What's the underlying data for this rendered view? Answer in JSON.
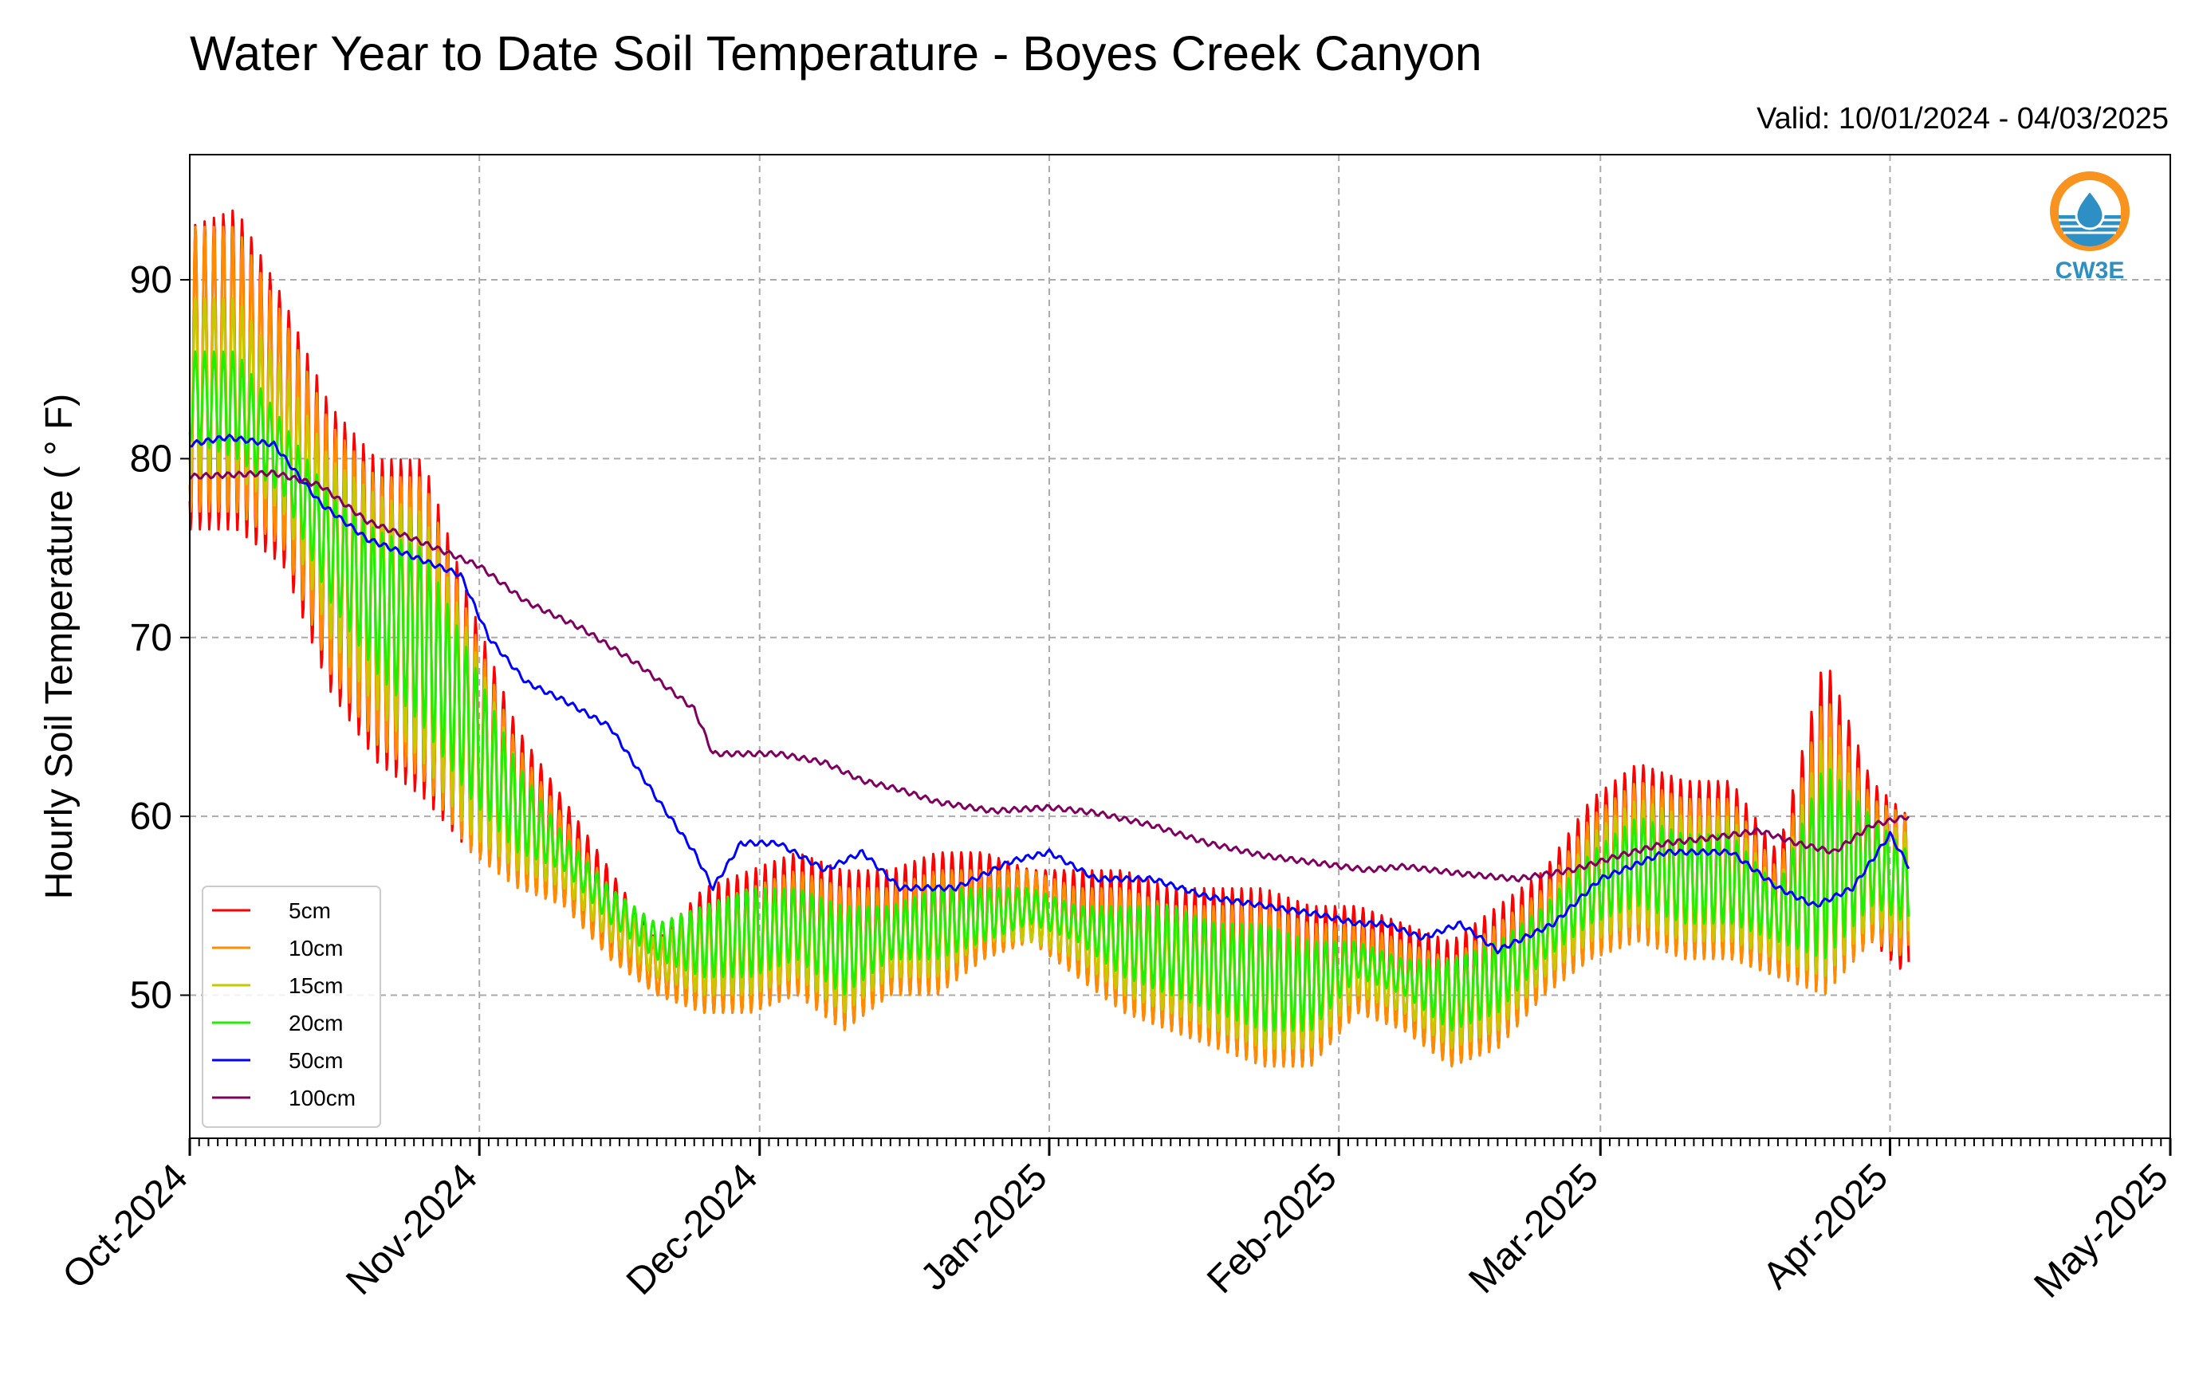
{
  "chart_data": {
    "type": "line",
    "title": "Water Year to Date Soil Temperature - Boyes Creek Canyon",
    "subtitle": "Valid: 10/01/2024 - 04/03/2025",
    "ylabel": "Hourly Soil Temperature ( ° F)",
    "xlabel": "",
    "ylim": [
      42,
      97
    ],
    "xlim": [
      "2024-10-01",
      "2025-05-01"
    ],
    "yticks": [
      50,
      60,
      70,
      80,
      90
    ],
    "x_ticks": [
      {
        "label": "Oct-2024",
        "date": "2024-10-01"
      },
      {
        "label": "Nov-2024",
        "date": "2024-11-01"
      },
      {
        "label": "Dec-2024",
        "date": "2024-12-01"
      },
      {
        "label": "Jan-2025",
        "date": "2025-01-01"
      },
      {
        "label": "Feb-2025",
        "date": "2025-02-01"
      },
      {
        "label": "Mar-2025",
        "date": "2025-03-01"
      },
      {
        "label": "Apr-2025",
        "date": "2025-04-01"
      },
      {
        "label": "May-2025",
        "date": "2025-05-01"
      }
    ],
    "grid": true,
    "legend_position": "lower-left",
    "series": [
      {
        "name": "5cm",
        "color": "#ff0000",
        "x": [
          "2024-10-01",
          "2024-10-06",
          "2024-10-11",
          "2024-10-16",
          "2024-10-21",
          "2024-10-26",
          "2024-10-31",
          "2024-11-05",
          "2024-11-10",
          "2024-11-15",
          "2024-11-20",
          "2024-11-25",
          "2024-11-30",
          "2024-12-05",
          "2024-12-10",
          "2024-12-15",
          "2024-12-20",
          "2024-12-25",
          "2024-12-30",
          "2025-01-04",
          "2025-01-09",
          "2025-01-14",
          "2025-01-19",
          "2025-01-24",
          "2025-01-29",
          "2025-02-03",
          "2025-02-08",
          "2025-02-13",
          "2025-02-18",
          "2025-02-23",
          "2025-02-28",
          "2025-03-05",
          "2025-03-10",
          "2025-03-15",
          "2025-03-20",
          "2025-03-25",
          "2025-03-30",
          "2025-04-03"
        ],
        "max": [
          93,
          94,
          89,
          83,
          80,
          80,
          72,
          65,
          61,
          57,
          53,
          56,
          57,
          58,
          57,
          57,
          58,
          58,
          57,
          57,
          57,
          56,
          56,
          56,
          55,
          55,
          54,
          53,
          55,
          57,
          61,
          63,
          62,
          62,
          58,
          69,
          62,
          60
        ],
        "min": [
          76,
          76,
          74,
          67,
          63,
          61,
          58,
          56,
          55,
          52,
          50,
          49,
          49,
          50,
          48,
          50,
          50,
          52,
          53,
          51,
          49,
          48,
          47,
          46,
          46,
          49,
          48,
          46,
          47,
          50,
          52,
          53,
          52,
          52,
          51,
          50,
          53,
          51
        ]
      },
      {
        "name": "10cm",
        "color": "#ff8c00",
        "x": [
          "2024-10-01",
          "2024-10-06",
          "2024-10-11",
          "2024-10-16",
          "2024-10-21",
          "2024-10-26",
          "2024-10-31",
          "2024-11-05",
          "2024-11-10",
          "2024-11-15",
          "2024-11-20",
          "2024-11-25",
          "2024-11-30",
          "2024-12-05",
          "2024-12-10",
          "2024-12-15",
          "2024-12-20",
          "2024-12-25",
          "2024-12-30",
          "2025-01-04",
          "2025-01-09",
          "2025-01-14",
          "2025-01-19",
          "2025-01-24",
          "2025-01-29",
          "2025-02-03",
          "2025-02-08",
          "2025-02-13",
          "2025-02-18",
          "2025-02-23",
          "2025-02-28",
          "2025-03-05",
          "2025-03-10",
          "2025-03-15",
          "2025-03-20",
          "2025-03-25",
          "2025-03-30",
          "2025-04-03"
        ],
        "max": [
          93,
          93,
          88,
          82,
          79,
          79,
          71,
          64,
          60,
          56,
          53,
          55,
          56,
          57,
          56,
          56,
          57,
          57,
          57,
          56,
          56,
          55,
          55,
          55,
          54,
          54,
          53,
          52,
          54,
          56,
          60,
          62,
          61,
          61,
          57,
          67,
          61,
          60
        ],
        "min": [
          77,
          77,
          75,
          68,
          64,
          62,
          58,
          56,
          55,
          52,
          50,
          49,
          49,
          50,
          48,
          50,
          50,
          52,
          53,
          51,
          49,
          48,
          47,
          46,
          46,
          49,
          48,
          46,
          47,
          50,
          52,
          53,
          52,
          52,
          51,
          50,
          53,
          52
        ]
      },
      {
        "name": "15cm",
        "color": "#c8c800",
        "x": [
          "2024-10-01",
          "2024-10-06",
          "2024-10-11",
          "2024-10-16",
          "2024-10-21",
          "2024-10-26",
          "2024-10-31",
          "2024-11-05",
          "2024-11-10",
          "2024-11-15",
          "2024-11-20",
          "2024-11-25",
          "2024-11-30",
          "2024-12-05",
          "2024-12-10",
          "2024-12-15",
          "2024-12-20",
          "2024-12-25",
          "2024-12-30",
          "2025-01-04",
          "2025-01-09",
          "2025-01-14",
          "2025-01-19",
          "2025-01-24",
          "2025-01-29",
          "2025-02-03",
          "2025-02-08",
          "2025-02-13",
          "2025-02-18",
          "2025-02-23",
          "2025-02-28",
          "2025-03-05",
          "2025-03-10",
          "2025-03-15",
          "2025-03-20",
          "2025-03-25",
          "2025-03-30",
          "2025-04-03"
        ],
        "max": [
          89,
          89,
          85,
          80,
          78,
          77,
          70,
          63,
          59,
          56,
          53,
          55,
          56,
          56,
          55,
          55,
          56,
          56,
          56,
          55,
          55,
          54,
          54,
          54,
          53,
          53,
          52,
          52,
          53,
          55,
          59,
          61,
          60,
          60,
          56,
          65,
          60,
          59
        ],
        "min": [
          79,
          79,
          77,
          70,
          66,
          63,
          59,
          57,
          56,
          53,
          51,
          50,
          50,
          51,
          49,
          51,
          51,
          53,
          53,
          52,
          50,
          49,
          48,
          47,
          47,
          50,
          49,
          47,
          48,
          51,
          53,
          54,
          53,
          53,
          52,
          51,
          54,
          53
        ]
      },
      {
        "name": "20cm",
        "color": "#22ee00",
        "x": [
          "2024-10-01",
          "2024-10-06",
          "2024-10-11",
          "2024-10-16",
          "2024-10-21",
          "2024-10-26",
          "2024-10-31",
          "2024-11-05",
          "2024-11-10",
          "2024-11-15",
          "2024-11-20",
          "2024-11-25",
          "2024-11-30",
          "2024-12-05",
          "2024-12-10",
          "2024-12-15",
          "2024-12-20",
          "2024-12-25",
          "2024-12-30",
          "2025-01-04",
          "2025-01-09",
          "2025-01-14",
          "2025-01-19",
          "2025-01-24",
          "2025-01-29",
          "2025-02-03",
          "2025-02-08",
          "2025-02-13",
          "2025-02-18",
          "2025-02-23",
          "2025-02-28",
          "2025-03-05",
          "2025-03-10",
          "2025-03-15",
          "2025-03-20",
          "2025-03-25",
          "2025-03-30",
          "2025-04-03"
        ],
        "max": [
          86,
          86,
          82,
          78,
          76,
          75,
          69,
          63,
          59,
          56,
          54,
          55,
          56,
          56,
          55,
          55,
          56,
          56,
          56,
          55,
          55,
          55,
          54,
          54,
          53,
          53,
          52,
          52,
          53,
          55,
          58,
          60,
          59,
          59,
          56,
          63,
          60,
          58
        ],
        "min": [
          81,
          80,
          78,
          72,
          68,
          65,
          61,
          58,
          57,
          54,
          52,
          51,
          51,
          52,
          50,
          52,
          52,
          53,
          54,
          53,
          51,
          50,
          49,
          48,
          48,
          51,
          50,
          48,
          49,
          52,
          54,
          55,
          54,
          54,
          53,
          52,
          55,
          54
        ]
      },
      {
        "name": "50cm",
        "color": "#0000ff",
        "x": [
          "2024-10-01",
          "2024-10-05",
          "2024-10-10",
          "2024-10-15",
          "2024-10-20",
          "2024-10-25",
          "2024-10-30",
          "2024-11-02",
          "2024-11-06",
          "2024-11-10",
          "2024-11-15",
          "2024-11-20",
          "2024-11-24",
          "2024-11-26",
          "2024-11-29",
          "2024-12-03",
          "2024-12-08",
          "2024-12-12",
          "2024-12-16",
          "2024-12-22",
          "2024-12-28",
          "2025-01-01",
          "2025-01-06",
          "2025-01-12",
          "2025-01-18",
          "2025-01-24",
          "2025-01-30",
          "2025-02-03",
          "2025-02-06",
          "2025-02-10",
          "2025-02-14",
          "2025-02-18",
          "2025-02-24",
          "2025-03-01",
          "2025-03-08",
          "2025-03-15",
          "2025-03-20",
          "2025-03-24",
          "2025-03-28",
          "2025-04-01",
          "2025-04-03"
        ],
        "values": [
          80.8,
          81.2,
          80.8,
          77.5,
          75.5,
          74.5,
          73.5,
          70,
          67.5,
          66.5,
          65,
          61,
          58,
          56,
          58.5,
          58.5,
          57,
          58,
          56,
          56,
          57.5,
          58,
          56.5,
          56.5,
          55.5,
          55,
          54.5,
          54,
          54,
          53.2,
          54,
          52.5,
          54,
          56.5,
          58,
          58,
          56,
          55,
          56,
          59,
          57.2
        ]
      },
      {
        "name": "100cm",
        "color": "#800060",
        "x": [
          "2024-10-01",
          "2024-10-10",
          "2024-10-15",
          "2024-10-20",
          "2024-10-25",
          "2024-11-01",
          "2024-11-06",
          "2024-11-12",
          "2024-11-18",
          "2024-11-24",
          "2024-11-26",
          "2024-11-28",
          "2024-12-03",
          "2024-12-08",
          "2024-12-12",
          "2024-12-16",
          "2024-12-20",
          "2024-12-26",
          "2025-01-01",
          "2025-01-06",
          "2025-01-12",
          "2025-01-18",
          "2025-01-24",
          "2025-01-31",
          "2025-02-04",
          "2025-02-08",
          "2025-02-14",
          "2025-02-20",
          "2025-02-26",
          "2025-03-03",
          "2025-03-08",
          "2025-03-13",
          "2025-03-18",
          "2025-03-22",
          "2025-03-26",
          "2025-03-30",
          "2025-04-03"
        ],
        "values": [
          79,
          79.2,
          78.5,
          76.5,
          75.5,
          74,
          72,
          70.5,
          68.5,
          66,
          63.5,
          63.5,
          63.5,
          63,
          62,
          61.5,
          60.8,
          60.3,
          60.5,
          60.2,
          59.5,
          58.5,
          57.8,
          57.3,
          57,
          57.2,
          56.8,
          56.5,
          57,
          57.8,
          58.5,
          58.8,
          59.2,
          58.5,
          58,
          59.5,
          60
        ]
      }
    ]
  },
  "logo": {
    "label": "CW3E"
  }
}
